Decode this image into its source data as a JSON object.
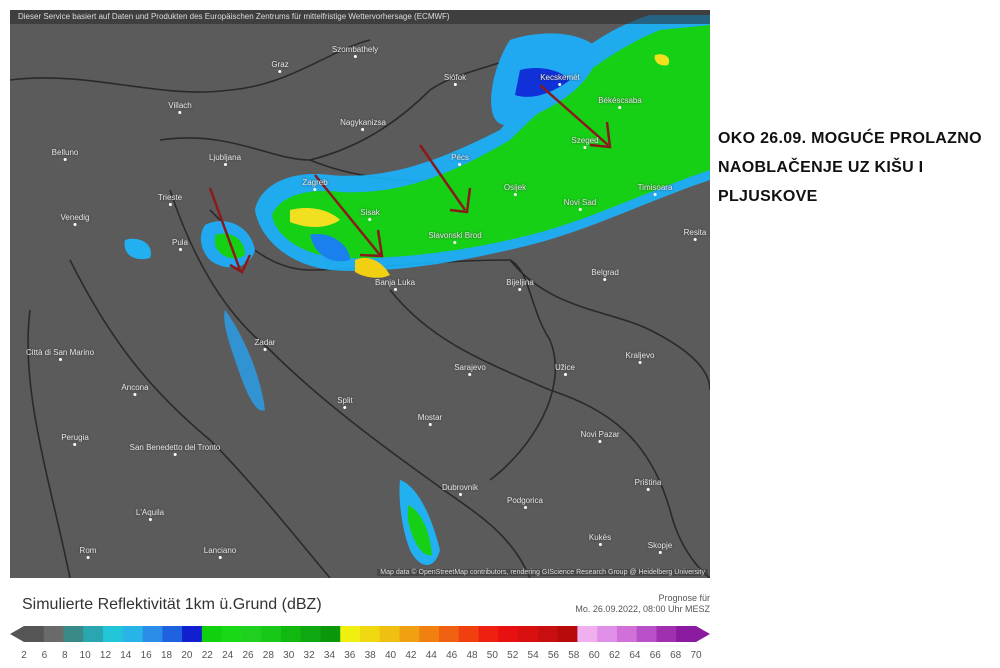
{
  "map": {
    "header": "Dieser Service basiert auf Daten und Produkten des Europäischen Zentrums für mittelfristige Wettervorhersage (ECMWF)",
    "attribution": "Map data © OpenStreetMap contributors, rendering GIScience Research Group @ Heidelberg University",
    "cities": [
      "Szombathely",
      "Graz",
      "Siófok",
      "Kecskemét",
      "Villach",
      "Nagykanizsa",
      "Békéscsaba",
      "Belluno",
      "Ljubljana",
      "Szeged",
      "Pécs",
      "Zagreb",
      "Osijek",
      "Timisoara",
      "Trieste",
      "Novi Sad",
      "Venedig",
      "Sisak",
      "Slavonski Brod",
      "Pula",
      "Belgrad",
      "Banja Luka",
      "Bijeljina",
      "Resita",
      "Zadar",
      "Città di San Marino",
      "Sarajevo",
      "Užice",
      "Kraljevo",
      "Ancona",
      "Split",
      "Mostar",
      "Perugia",
      "San Benedetto del Tronto",
      "Novi Pazar",
      "Priština",
      "L'Aquila",
      "Dubrovnik",
      "Podgorica",
      "Lanciano",
      "Rom",
      "Kukës",
      "Skopje"
    ],
    "arrow_color": "#8b1a1a"
  },
  "note": "OKO 26.09. MOGUĆE PROLAZNO NAOBLAČENJE UZ KIŠU I PLJUSKOVE",
  "legend": {
    "title": "Simulierte Reflektivität 1km ü.Grund (dBZ)",
    "forecast_label": "Prognose für",
    "forecast_time": "Mo. 26.09.2022, 08:00 Uhr MESZ",
    "ticks": [
      "2",
      "6",
      "8",
      "10",
      "12",
      "14",
      "16",
      "18",
      "20",
      "22",
      "24",
      "26",
      "28",
      "30",
      "32",
      "34",
      "36",
      "38",
      "40",
      "42",
      "44",
      "46",
      "48",
      "50",
      "52",
      "54",
      "56",
      "58",
      "60",
      "62",
      "64",
      "66",
      "68",
      "70"
    ],
    "colors": [
      "#555555",
      "#6a6a6a",
      "#3a8a8a",
      "#2aa6b0",
      "#22c4d8",
      "#29b4e8",
      "#2a8ee8",
      "#1f62e0",
      "#1020d0",
      "#10d010",
      "#18d818",
      "#20d020",
      "#18c818",
      "#10b810",
      "#10a810",
      "#0a980a",
      "#f0f010",
      "#f0d810",
      "#f0c010",
      "#f0a010",
      "#f08010",
      "#f06010",
      "#f04010",
      "#f02010",
      "#e81010",
      "#d81010",
      "#c80e0e",
      "#b80a0a",
      "#f0b0f0",
      "#e090e8",
      "#d070d8",
      "#b850c8",
      "#a030b0",
      "#8a1aa0"
    ]
  }
}
